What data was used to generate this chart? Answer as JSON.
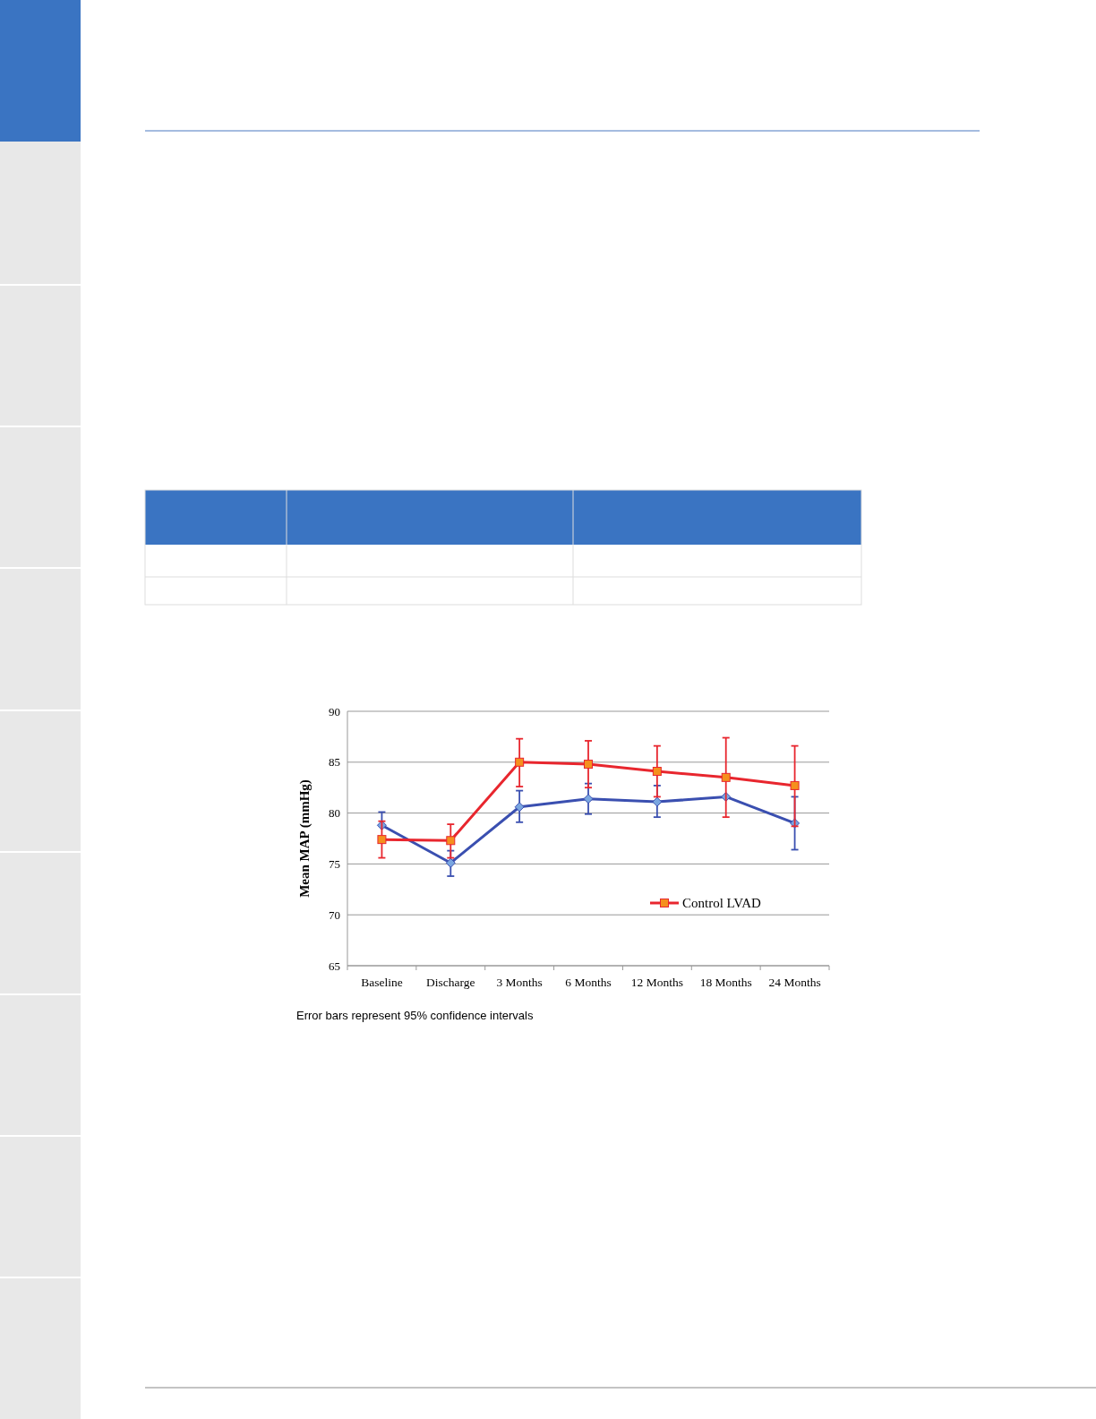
{
  "chart_data": {
    "type": "line",
    "ylabel": "Mean MAP (mmHg)",
    "categories": [
      "Baseline",
      "Discharge",
      "3 Months",
      "6 Months",
      "12 Months",
      "18 Months",
      "24 Months"
    ],
    "series": [
      {
        "color": "#3a4fb0",
        "marker": "diamond",
        "values": [
          78.8,
          75.1,
          80.6,
          81.4,
          81.1,
          81.6,
          79.0
        ],
        "errors": [
          [
            78.8,
            80.1
          ],
          [
            73.8,
            76.3
          ],
          [
            79.1,
            82.2
          ],
          [
            79.9,
            82.9
          ],
          [
            79.6,
            82.7
          ],
          null,
          [
            76.4,
            81.6
          ]
        ]
      },
      {
        "name": "Control LVAD",
        "color": "#e8262e",
        "marker": "square",
        "values": [
          77.4,
          77.3,
          85.0,
          84.8,
          84.1,
          83.5,
          82.7
        ],
        "errors": [
          [
            75.6,
            79.2
          ],
          [
            75.6,
            78.9
          ],
          [
            82.6,
            87.3
          ],
          [
            82.5,
            87.1
          ],
          [
            81.6,
            86.6
          ],
          [
            79.6,
            87.4
          ],
          [
            78.7,
            86.6
          ]
        ]
      }
    ],
    "ylim": [
      65,
      90
    ],
    "yticks": [
      65,
      70,
      75,
      80,
      85,
      90
    ],
    "grid": "y",
    "legend": "bottom right",
    "annotations": [
      "Error bars represent 95% confidence intervals"
    ]
  }
}
